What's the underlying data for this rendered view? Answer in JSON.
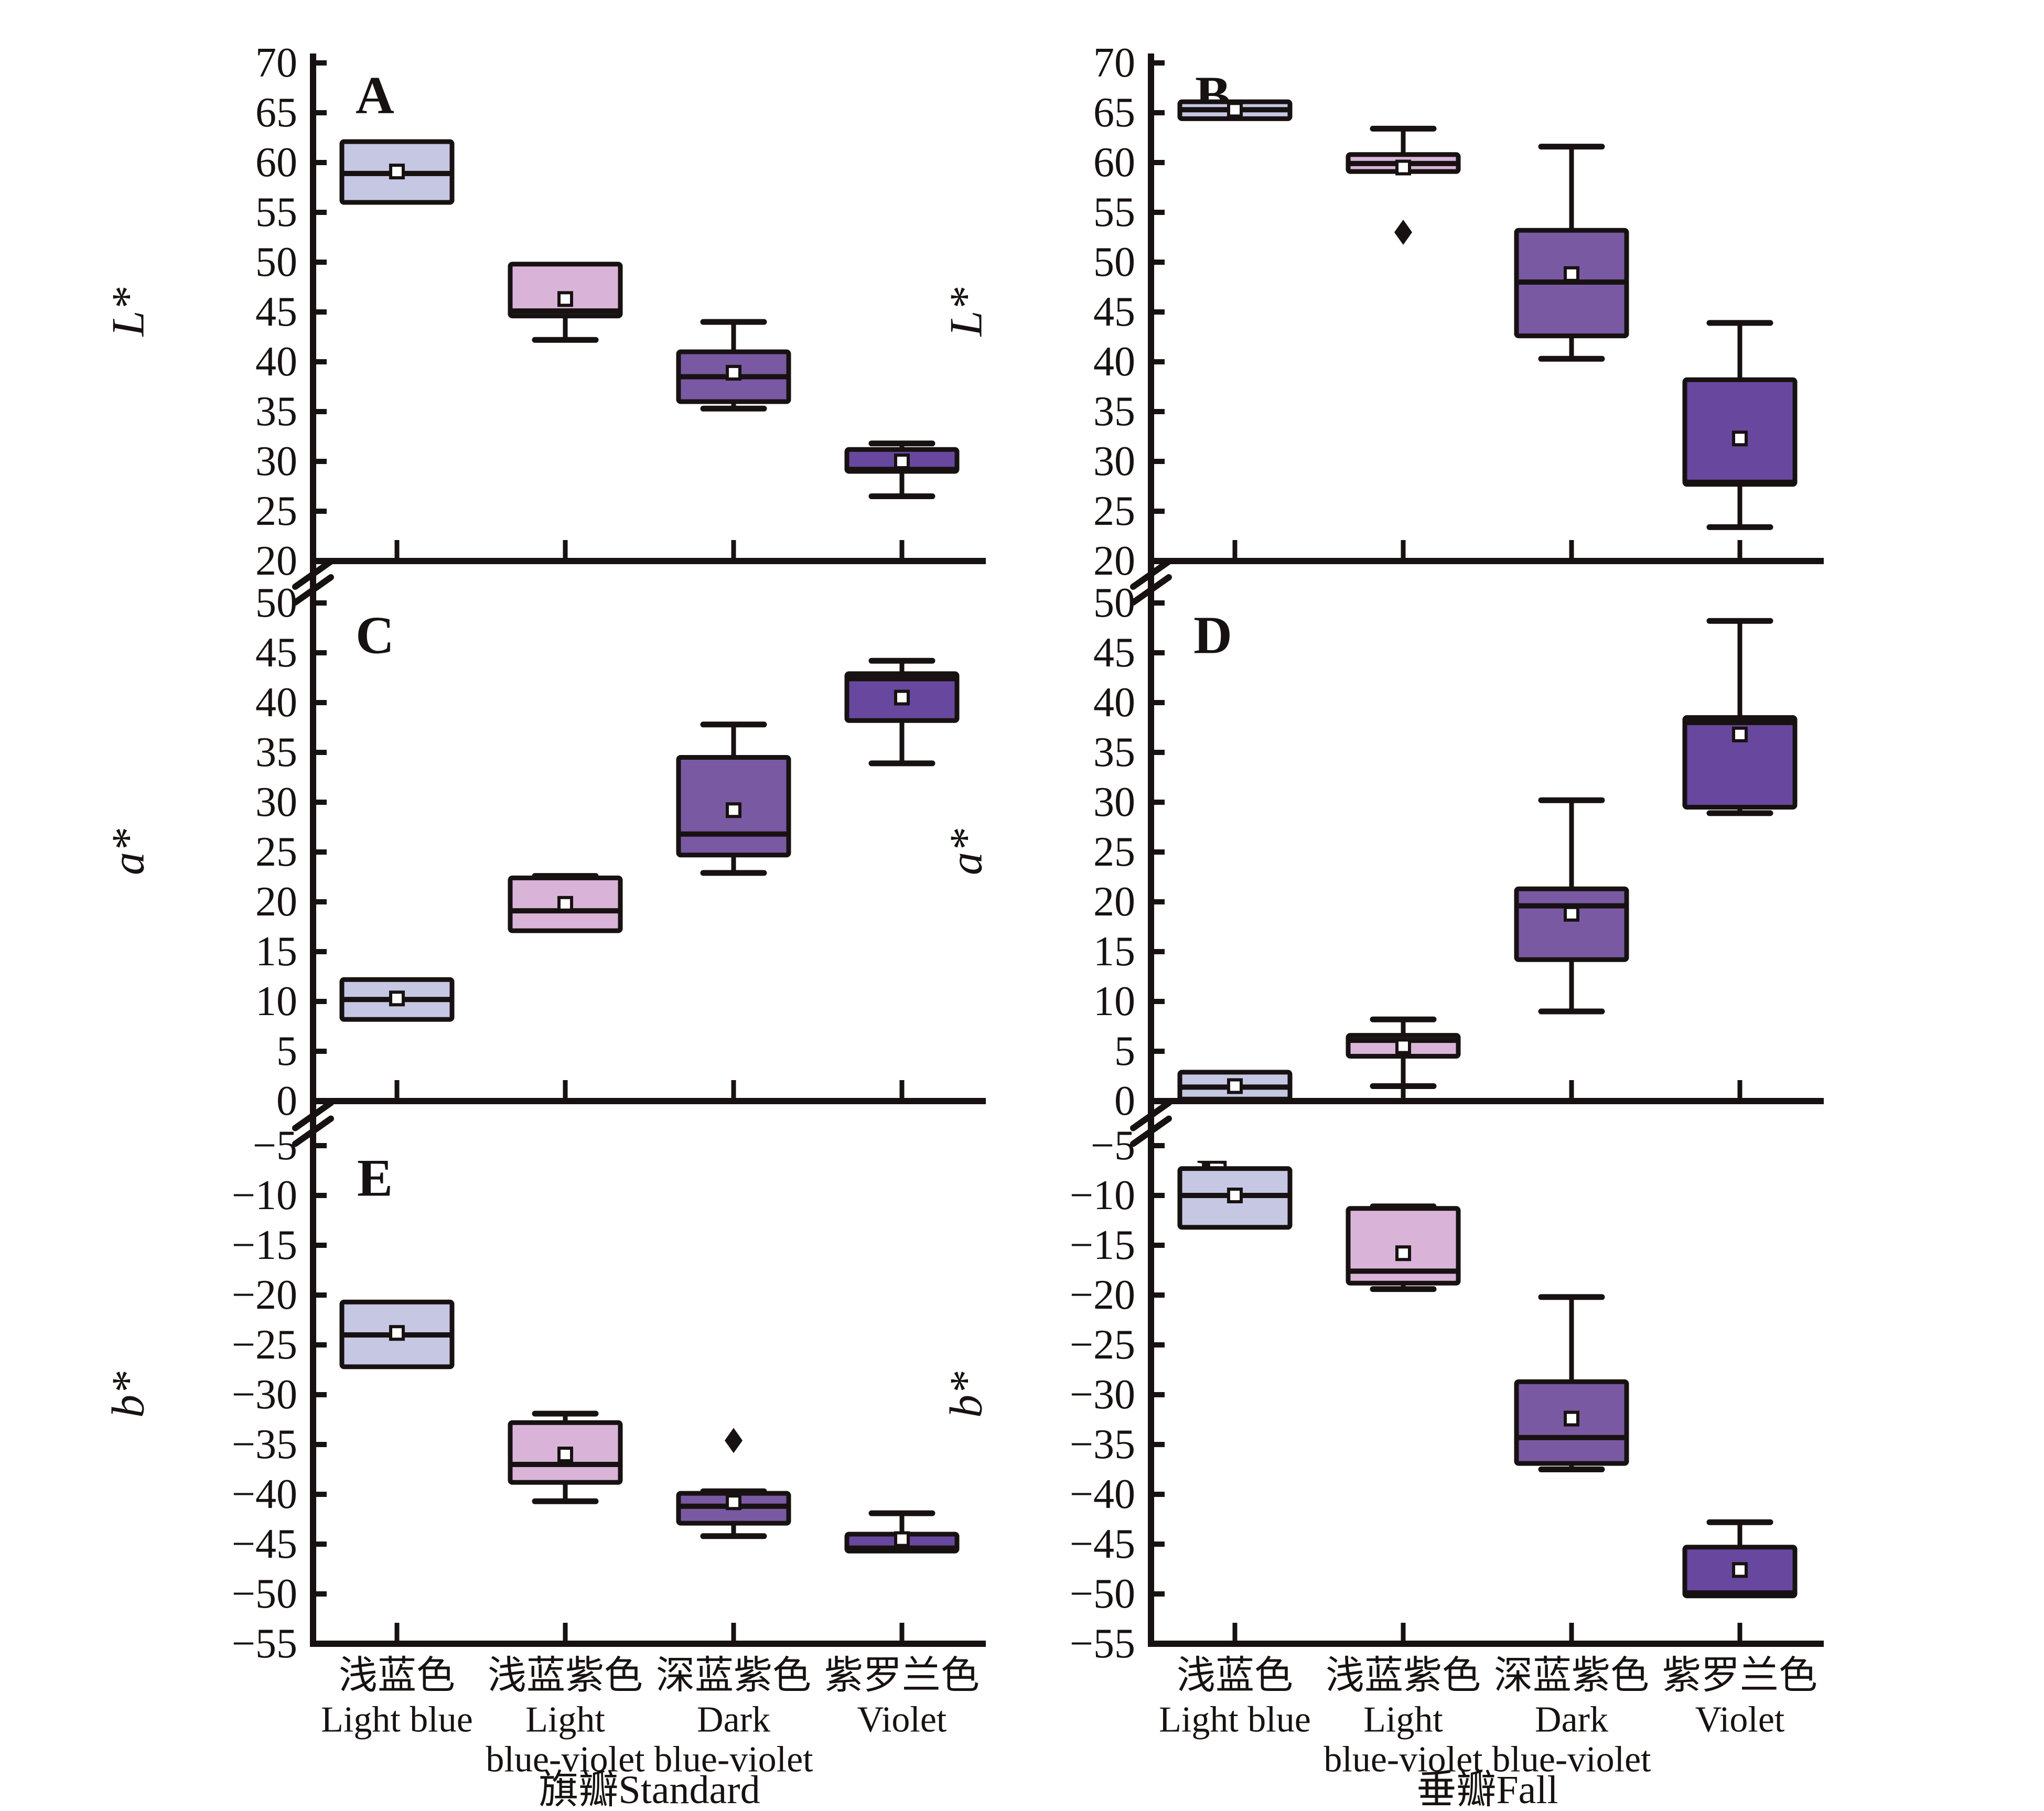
{
  "figure_title": "",
  "chart_data": {
    "type": "boxplot",
    "layout": "2-column 3-row grid of panels",
    "marker_legend": {
      "mean_marker": "open-square",
      "outlier_marker": "filled-diamond"
    },
    "ink_color": "#171211",
    "categories": [
      {
        "key": "light-blue",
        "label_cn": "浅蓝色",
        "label_en_lines": [
          "Light blue"
        ],
        "color": "#c6c7e3"
      },
      {
        "key": "light-blue-violet",
        "label_cn": "浅蓝紫色",
        "label_en_lines": [
          "Light",
          "blue-violet"
        ],
        "color": "#d9b4d8"
      },
      {
        "key": "dark-blue-violet",
        "label_cn": "深蓝紫色",
        "label_en_lines": [
          "Dark",
          "blue-violet"
        ],
        "color": "#7a59a3"
      },
      {
        "key": "violet",
        "label_cn": "紫罗兰色",
        "label_en_lines": [
          "Violet"
        ],
        "color": "#68489e"
      }
    ],
    "columns": [
      {
        "key": "standard",
        "title": "旗瓣Standard"
      },
      {
        "key": "fall",
        "title": "垂瓣Fall"
      }
    ],
    "rows": [
      {
        "ylabel": "L*",
        "ylim": [
          20,
          70
        ],
        "ytick_step": 5,
        "axis_break_above": false
      },
      {
        "ylabel": "a*",
        "ylim": [
          0,
          50
        ],
        "ytick_step": 5,
        "axis_break_above": true
      },
      {
        "ylabel": "b*",
        "ylim": [
          -55,
          -5
        ],
        "ytick_step": 5,
        "axis_break_above": true
      }
    ],
    "panels": [
      {
        "letter": "A",
        "row": 0,
        "col": 0,
        "boxes": [
          {
            "q1": 56.0,
            "median": 58.9,
            "q3": 62.1,
            "mean": 59.1,
            "whisker_low": null,
            "whisker_high": null,
            "outliers": []
          },
          {
            "q1": 44.6,
            "median": 45.1,
            "q3": 49.8,
            "mean": 46.3,
            "whisker_low": 42.2,
            "whisker_high": null,
            "outliers": []
          },
          {
            "q1": 36.0,
            "median": 38.5,
            "q3": 41.0,
            "mean": 38.9,
            "whisker_low": 35.3,
            "whisker_high": 44.0,
            "outliers": []
          },
          {
            "q1": 29.0,
            "median": 29.2,
            "q3": 31.2,
            "mean": 30.0,
            "whisker_low": 26.5,
            "whisker_high": 31.8,
            "outliers": []
          }
        ]
      },
      {
        "letter": "B",
        "row": 0,
        "col": 1,
        "boxes": [
          {
            "q1": 64.4,
            "median": 65.3,
            "q3": 66.1,
            "mean": 65.3,
            "whisker_low": null,
            "whisker_high": null,
            "outliers": []
          },
          {
            "q1": 59.1,
            "median": 59.9,
            "q3": 60.8,
            "mean": 59.5,
            "whisker_low": null,
            "whisker_high": 63.4,
            "outliers": [
              53.0
            ]
          },
          {
            "q1": 42.6,
            "median": 48.0,
            "q3": 53.2,
            "mean": 48.8,
            "whisker_low": 40.3,
            "whisker_high": 61.6,
            "outliers": []
          },
          {
            "q1": 27.7,
            "median": 27.9,
            "q3": 38.2,
            "mean": 32.3,
            "whisker_low": 23.4,
            "whisker_high": 43.9,
            "outliers": []
          }
        ]
      },
      {
        "letter": "C",
        "row": 1,
        "col": 0,
        "boxes": [
          {
            "q1": 8.2,
            "median": 10.2,
            "q3": 12.2,
            "mean": 10.3,
            "whisker_low": null,
            "whisker_high": null,
            "outliers": []
          },
          {
            "q1": 17.1,
            "median": 19.1,
            "q3": 22.4,
            "mean": 19.8,
            "whisker_low": null,
            "whisker_high": 22.6,
            "outliers": []
          },
          {
            "q1": 24.7,
            "median": 26.8,
            "q3": 34.5,
            "mean": 29.2,
            "whisker_low": 22.9,
            "whisker_high": 37.8,
            "outliers": []
          },
          {
            "q1": 38.2,
            "median": 42.4,
            "q3": 42.9,
            "mean": 40.5,
            "whisker_low": 33.9,
            "whisker_high": 44.2,
            "outliers": []
          }
        ]
      },
      {
        "letter": "D",
        "row": 1,
        "col": 1,
        "boxes": [
          {
            "q1": 0.2,
            "median": 1.4,
            "q3": 2.9,
            "mean": 1.5,
            "whisker_low": null,
            "whisker_high": null,
            "outliers": []
          },
          {
            "q1": 4.5,
            "median": 6.1,
            "q3": 6.6,
            "mean": 5.5,
            "whisker_low": 1.5,
            "whisker_high": 8.2,
            "outliers": []
          },
          {
            "q1": 14.2,
            "median": 19.6,
            "q3": 21.3,
            "mean": 18.8,
            "whisker_low": 9.0,
            "whisker_high": 30.2,
            "outliers": []
          },
          {
            "q1": 29.5,
            "median": 38.0,
            "q3": 38.5,
            "mean": 36.8,
            "whisker_low": 28.9,
            "whisker_high": 48.2,
            "outliers": []
          }
        ]
      },
      {
        "letter": "E",
        "row": 2,
        "col": 0,
        "boxes": [
          {
            "q1": -27.2,
            "median": -24.0,
            "q3": -20.7,
            "mean": -23.8,
            "whisker_low": null,
            "whisker_high": null,
            "outliers": []
          },
          {
            "q1": -38.8,
            "median": -37.0,
            "q3": -32.8,
            "mean": -36.0,
            "whisker_low": -40.7,
            "whisker_high": -31.9,
            "outliers": []
          },
          {
            "q1": -42.9,
            "median": -41.2,
            "q3": -39.9,
            "mean": -40.8,
            "whisker_low": -44.2,
            "whisker_high": -39.7,
            "outliers": [
              -34.6
            ]
          },
          {
            "q1": -45.7,
            "median": -45.4,
            "q3": -44.0,
            "mean": -44.5,
            "whisker_low": null,
            "whisker_high": -41.9,
            "outliers": []
          }
        ]
      },
      {
        "letter": "F",
        "row": 2,
        "col": 1,
        "boxes": [
          {
            "q1": -13.2,
            "median": -10.0,
            "q3": -7.3,
            "mean": -10.0,
            "whisker_low": null,
            "whisker_high": null,
            "outliers": []
          },
          {
            "q1": -18.8,
            "median": -17.6,
            "q3": -11.3,
            "mean": -15.8,
            "whisker_low": -19.4,
            "whisker_high": -11.1,
            "outliers": []
          },
          {
            "q1": -36.9,
            "median": -34.3,
            "q3": -28.7,
            "mean": -32.4,
            "whisker_low": -37.5,
            "whisker_high": -20.2,
            "outliers": []
          },
          {
            "q1": -50.2,
            "median": -49.9,
            "q3": -45.3,
            "mean": -47.6,
            "whisker_low": null,
            "whisker_high": -42.8,
            "outliers": []
          }
        ]
      }
    ]
  }
}
